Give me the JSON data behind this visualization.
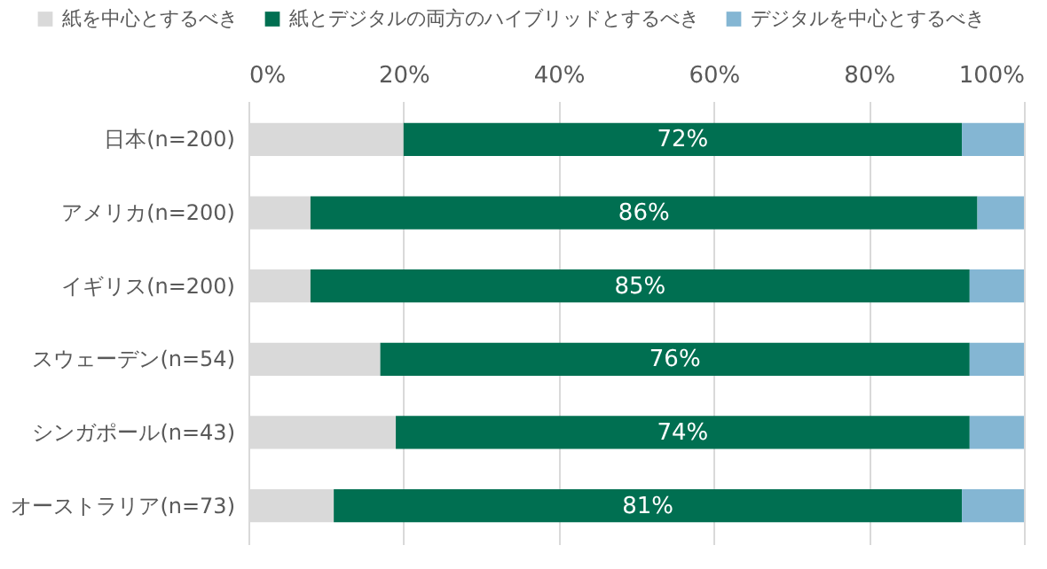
{
  "chart_data": {
    "type": "bar",
    "orientation": "horizontal",
    "stacked": true,
    "categories": [
      "日本(n=200)",
      "アメリカ(n=200)",
      "イギリス(n=200)",
      "スウェーデン(n=54)",
      "シンガポール(n=43)",
      "オーストラリア(n=73)"
    ],
    "series": [
      {
        "name": "紙を中心とするべき",
        "color": "#d9d9d9",
        "values": [
          20,
          8,
          8,
          17,
          19,
          11
        ]
      },
      {
        "name": "紙とデジタルの両方のハイブリッドとするべき",
        "color": "#006f51",
        "values": [
          72,
          86,
          85,
          76,
          74,
          81
        ],
        "value_labels": [
          "72%",
          "86%",
          "85%",
          "76%",
          "74%",
          "81%"
        ]
      },
      {
        "name": "デジタルを中心とするべき",
        "color": "#84b6d3",
        "values": [
          8,
          6,
          7,
          7,
          7,
          8
        ]
      }
    ],
    "xlim": [
      0,
      100
    ],
    "xticks": [
      {
        "value": 0,
        "label": "0%"
      },
      {
        "value": 20,
        "label": "20%"
      },
      {
        "value": 40,
        "label": "40%"
      },
      {
        "value": 60,
        "label": "60%"
      },
      {
        "value": 80,
        "label": "80%"
      },
      {
        "value": 100,
        "label": "100%"
      }
    ],
    "grid": "x",
    "legend": "top"
  }
}
